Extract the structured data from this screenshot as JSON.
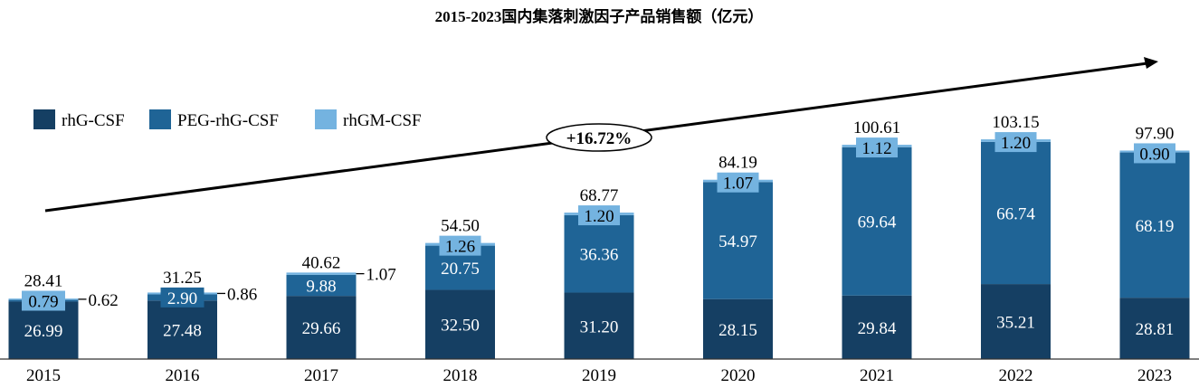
{
  "chart_data": {
    "type": "bar",
    "stacked": true,
    "title": "2015-2023国内集落刺激因子产品销售额（亿元）",
    "xlabel": "",
    "ylabel": "",
    "categories": [
      "2015",
      "2016",
      "2017",
      "2018",
      "2019",
      "2020",
      "2021",
      "2022",
      "2023"
    ],
    "series": [
      {
        "name": "rhG-CSF",
        "color": "#153f63",
        "values": [
          26.99,
          27.48,
          29.66,
          32.5,
          31.2,
          28.15,
          29.84,
          35.21,
          28.81
        ]
      },
      {
        "name": "PEG-rhG-CSF",
        "color": "#1f6496",
        "values": [
          0.79,
          2.9,
          9.88,
          20.75,
          36.36,
          54.97,
          69.64,
          66.74,
          68.19
        ]
      },
      {
        "name": "rhGM-CSF",
        "color": "#74b3e0",
        "values": [
          0.62,
          0.86,
          1.07,
          1.26,
          1.2,
          1.07,
          1.12,
          1.2,
          0.9
        ]
      }
    ],
    "totals": [
      28.41,
      31.25,
      40.62,
      54.5,
      68.77,
      84.19,
      100.61,
      103.15,
      97.9
    ],
    "annotation": "+16.72%",
    "legend_position": "top-left",
    "ylim": [
      0,
      115
    ],
    "grid": false
  }
}
